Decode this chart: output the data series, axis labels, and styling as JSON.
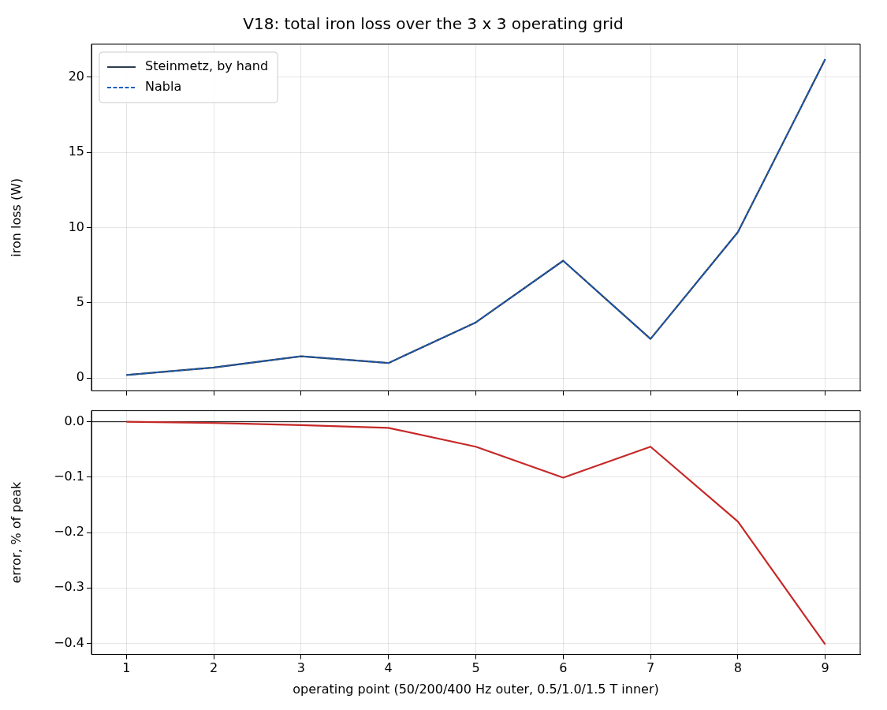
{
  "chart_data": [
    {
      "type": "line",
      "title": "V18: total iron loss over the 3 x 3 operating grid",
      "ylabel": "iron loss (W)",
      "x": [
        1,
        2,
        3,
        4,
        5,
        6,
        7,
        8,
        9
      ],
      "xlim": [
        0.6,
        9.4
      ],
      "xticks": [
        1,
        2,
        3,
        4,
        5,
        6,
        7,
        8,
        9
      ],
      "ylim": [
        -0.85,
        22.2
      ],
      "yticks": [
        0,
        5,
        10,
        15,
        20
      ],
      "grid": true,
      "legend": "top left",
      "tick_labels": "y",
      "series": [
        {
          "name": "Steinmetz, by hand",
          "color": "#2d3e50",
          "line_style": "solid",
          "values": [
            0.2,
            0.7,
            1.45,
            1.0,
            3.7,
            7.8,
            2.6,
            9.7,
            21.2
          ]
        },
        {
          "name": "Nabla",
          "color": "#1f5fbf",
          "line_style": "dashed",
          "values": [
            0.2,
            0.7,
            1.45,
            1.0,
            3.7,
            7.8,
            2.6,
            9.7,
            21.2
          ]
        }
      ]
    },
    {
      "type": "line",
      "xlabel": "operating point (50/200/400 Hz outer, 0.5/1.0/1.5 T inner)",
      "ylabel": "error, % of peak",
      "x": [
        1,
        2,
        3,
        4,
        5,
        6,
        7,
        8,
        9
      ],
      "xlim": [
        0.6,
        9.4
      ],
      "xticks": [
        1,
        2,
        3,
        4,
        5,
        6,
        7,
        8,
        9
      ],
      "ylim": [
        -0.42,
        0.02
      ],
      "yticks": [
        {
          "value": 0,
          "label": "0.0"
        },
        {
          "value": -0.1,
          "label": "−0.1"
        },
        {
          "value": -0.2,
          "label": "−0.2"
        },
        {
          "value": -0.3,
          "label": "−0.3"
        },
        {
          "value": -0.4,
          "label": "−0.4"
        }
      ],
      "grid": true,
      "ref_lines": [
        {
          "axis": "y",
          "value": 0,
          "color": "#000000"
        }
      ],
      "series": [
        {
          "color": "#c62828",
          "values": [
            0,
            -0.002,
            -0.006,
            -0.011,
            -0.045,
            -0.101,
            -0.045,
            -0.18,
            -0.402
          ]
        }
      ]
    }
  ]
}
